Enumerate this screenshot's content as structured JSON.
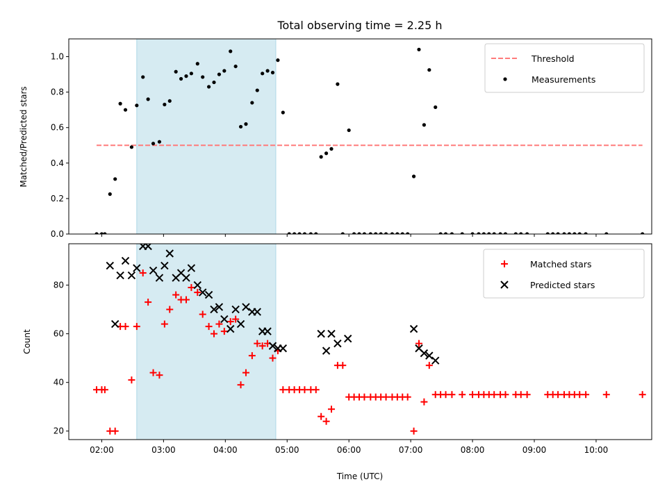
{
  "title": "Total observing time = 2.25 h",
  "colors": {
    "shade": "#add8e6",
    "threshold": "#ff7b7b",
    "measurements": "#000000",
    "matched": "#ff0000",
    "predicted": "#000000"
  },
  "chart_data": [
    {
      "type": "scatter",
      "ylabel": "Matched/Predicted stars",
      "xlim": [
        "01:28",
        "10:54"
      ],
      "ylim": [
        0,
        1.1
      ],
      "yticks": [
        0.0,
        0.2,
        0.4,
        0.6,
        0.8,
        1.0
      ],
      "ytick_labels": [
        "0.0",
        "0.2",
        "0.4",
        "0.6",
        "0.8",
        "1.0"
      ],
      "shaded_span": [
        "02:34",
        "04:49"
      ],
      "threshold": {
        "y": 0.5,
        "x_range": [
          "01:55",
          "10:45"
        ]
      },
      "legend": {
        "position": "upper right",
        "entries": [
          "Threshold",
          "Measurements"
        ]
      },
      "series": [
        {
          "name": "Threshold",
          "kind": "dashed-line"
        },
        {
          "name": "Measurements",
          "kind": "dot",
          "points": [
            [
              "01:55",
              0
            ],
            [
              "02:00",
              0
            ],
            [
              "02:03",
              0
            ],
            [
              "02:08",
              0.225
            ],
            [
              "02:13",
              0.31
            ],
            [
              "02:18",
              0.735
            ],
            [
              "02:23",
              0.7
            ],
            [
              "02:29",
              0.49
            ],
            [
              "02:34",
              0.725
            ],
            [
              "02:40",
              0.885
            ],
            [
              "02:45",
              0.76
            ],
            [
              "02:50",
              0.51
            ],
            [
              "02:56",
              0.52
            ],
            [
              "03:01",
              0.73
            ],
            [
              "03:06",
              0.75
            ],
            [
              "03:12",
              0.915
            ],
            [
              "03:17",
              0.875
            ],
            [
              "03:22",
              0.89
            ],
            [
              "03:27",
              0.905
            ],
            [
              "03:33",
              0.96
            ],
            [
              "03:38",
              0.885
            ],
            [
              "03:44",
              0.83
            ],
            [
              "03:49",
              0.855
            ],
            [
              "03:54",
              0.9
            ],
            [
              "03:59",
              0.92
            ],
            [
              "04:05",
              1.03
            ],
            [
              "04:10",
              0.945
            ],
            [
              "04:15",
              0.605
            ],
            [
              "04:20",
              0.62
            ],
            [
              "04:26",
              0.74
            ],
            [
              "04:31",
              0.81
            ],
            [
              "04:36",
              0.905
            ],
            [
              "04:41",
              0.92
            ],
            [
              "04:46",
              0.91
            ],
            [
              "04:51",
              0.98
            ],
            [
              "04:56",
              0.685
            ],
            [
              "05:02",
              0
            ],
            [
              "05:07",
              0
            ],
            [
              "05:12",
              0
            ],
            [
              "05:17",
              0
            ],
            [
              "05:23",
              0
            ],
            [
              "05:28",
              0
            ],
            [
              "05:33",
              0.435
            ],
            [
              "05:38",
              0.455
            ],
            [
              "05:43",
              0.48
            ],
            [
              "05:49",
              0.845
            ],
            [
              "05:54",
              0
            ],
            [
              "06:00",
              0.585
            ],
            [
              "06:05",
              0
            ],
            [
              "06:10",
              0
            ],
            [
              "06:15",
              0
            ],
            [
              "06:21",
              0
            ],
            [
              "06:26",
              0
            ],
            [
              "06:31",
              0
            ],
            [
              "06:36",
              0
            ],
            [
              "06:42",
              0
            ],
            [
              "06:47",
              0
            ],
            [
              "06:52",
              0
            ],
            [
              "06:57",
              0
            ],
            [
              "07:03",
              0.325
            ],
            [
              "07:08",
              1.04
            ],
            [
              "07:13",
              0.615
            ],
            [
              "07:18",
              0.925
            ],
            [
              "07:24",
              0.715
            ],
            [
              "07:29",
              0
            ],
            [
              "07:34",
              0
            ],
            [
              "07:40",
              0
            ],
            [
              "07:50",
              0
            ],
            [
              "08:00",
              0
            ],
            [
              "08:06",
              0
            ],
            [
              "08:11",
              0
            ],
            [
              "08:16",
              0
            ],
            [
              "08:21",
              0
            ],
            [
              "08:27",
              0
            ],
            [
              "08:32",
              0
            ],
            [
              "08:42",
              0
            ],
            [
              "08:47",
              0
            ],
            [
              "08:53",
              0
            ],
            [
              "09:13",
              0
            ],
            [
              "09:18",
              0
            ],
            [
              "09:23",
              0
            ],
            [
              "09:29",
              0
            ],
            [
              "09:34",
              0
            ],
            [
              "09:39",
              0
            ],
            [
              "09:44",
              0
            ],
            [
              "09:50",
              0
            ],
            [
              "10:10",
              0
            ],
            [
              "10:45",
              0
            ]
          ]
        }
      ]
    },
    {
      "type": "scatter",
      "ylabel": "Count",
      "xlabel": "Time (UTC)",
      "xlim": [
        "01:28",
        "10:54"
      ],
      "ylim": [
        16.5,
        97
      ],
      "yticks": [
        20,
        40,
        60,
        80
      ],
      "ytick_labels": [
        "20",
        "40",
        "60",
        "80"
      ],
      "xticks": [
        "02:00",
        "03:00",
        "04:00",
        "05:00",
        "06:00",
        "07:00",
        "08:00",
        "09:00",
        "10:00"
      ],
      "xtick_labels": [
        "02:00",
        "03:00",
        "04:00",
        "05:00",
        "06:00",
        "07:00",
        "08:00",
        "09:00",
        "10:00"
      ],
      "shaded_span": [
        "02:34",
        "04:49"
      ],
      "legend": {
        "position": "upper right",
        "entries": [
          "Matched stars",
          "Predicted stars"
        ]
      },
      "series": [
        {
          "name": "Matched stars",
          "kind": "plus",
          "points": [
            [
              "01:55",
              37
            ],
            [
              "02:00",
              37
            ],
            [
              "02:03",
              37
            ],
            [
              "02:08",
              20
            ],
            [
              "02:13",
              20
            ],
            [
              "02:18",
              63
            ],
            [
              "02:23",
              63
            ],
            [
              "02:29",
              41
            ],
            [
              "02:34",
              63
            ],
            [
              "02:40",
              85
            ],
            [
              "02:45",
              73
            ],
            [
              "02:50",
              44
            ],
            [
              "02:56",
              43
            ],
            [
              "03:01",
              64
            ],
            [
              "03:06",
              70
            ],
            [
              "03:12",
              76
            ],
            [
              "03:17",
              74
            ],
            [
              "03:22",
              74
            ],
            [
              "03:27",
              79
            ],
            [
              "03:33",
              77
            ],
            [
              "03:38",
              68
            ],
            [
              "03:44",
              63
            ],
            [
              "03:49",
              60
            ],
            [
              "03:54",
              64
            ],
            [
              "03:59",
              61
            ],
            [
              "04:05",
              65
            ],
            [
              "04:10",
              66
            ],
            [
              "04:15",
              39
            ],
            [
              "04:20",
              44
            ],
            [
              "04:26",
              51
            ],
            [
              "04:31",
              56
            ],
            [
              "04:36",
              55
            ],
            [
              "04:41",
              56
            ],
            [
              "04:46",
              50
            ],
            [
              "04:51",
              53
            ],
            [
              "04:56",
              37
            ],
            [
              "05:02",
              37
            ],
            [
              "05:07",
              37
            ],
            [
              "05:12",
              37
            ],
            [
              "05:17",
              37
            ],
            [
              "05:23",
              37
            ],
            [
              "05:28",
              37
            ],
            [
              "05:33",
              26
            ],
            [
              "05:38",
              24
            ],
            [
              "05:43",
              29
            ],
            [
              "05:49",
              47
            ],
            [
              "05:54",
              47
            ],
            [
              "06:00",
              34
            ],
            [
              "06:05",
              34
            ],
            [
              "06:10",
              34
            ],
            [
              "06:15",
              34
            ],
            [
              "06:21",
              34
            ],
            [
              "06:26",
              34
            ],
            [
              "06:31",
              34
            ],
            [
              "06:36",
              34
            ],
            [
              "06:42",
              34
            ],
            [
              "06:47",
              34
            ],
            [
              "06:52",
              34
            ],
            [
              "06:57",
              34
            ],
            [
              "07:03",
              20
            ],
            [
              "07:08",
              56
            ],
            [
              "07:13",
              32
            ],
            [
              "07:18",
              47
            ],
            [
              "07:24",
              35
            ],
            [
              "07:29",
              35
            ],
            [
              "07:34",
              35
            ],
            [
              "07:40",
              35
            ],
            [
              "07:50",
              35
            ],
            [
              "08:00",
              35
            ],
            [
              "08:06",
              35
            ],
            [
              "08:11",
              35
            ],
            [
              "08:16",
              35
            ],
            [
              "08:21",
              35
            ],
            [
              "08:27",
              35
            ],
            [
              "08:32",
              35
            ],
            [
              "08:42",
              35
            ],
            [
              "08:47",
              35
            ],
            [
              "08:53",
              35
            ],
            [
              "09:13",
              35
            ],
            [
              "09:18",
              35
            ],
            [
              "09:23",
              35
            ],
            [
              "09:29",
              35
            ],
            [
              "09:34",
              35
            ],
            [
              "09:39",
              35
            ],
            [
              "09:44",
              35
            ],
            [
              "09:50",
              35
            ],
            [
              "10:10",
              35
            ],
            [
              "10:45",
              35
            ]
          ]
        },
        {
          "name": "Predicted stars",
          "kind": "cross",
          "points": [
            [
              "02:08",
              88
            ],
            [
              "02:13",
              64
            ],
            [
              "02:18",
              84
            ],
            [
              "02:23",
              90
            ],
            [
              "02:29",
              84
            ],
            [
              "02:34",
              87
            ],
            [
              "02:40",
              96
            ],
            [
              "02:45",
              96
            ],
            [
              "02:50",
              86
            ],
            [
              "02:56",
              83
            ],
            [
              "03:01",
              88
            ],
            [
              "03:06",
              93
            ],
            [
              "03:12",
              83
            ],
            [
              "03:17",
              85
            ],
            [
              "03:22",
              83
            ],
            [
              "03:27",
              87
            ],
            [
              "03:33",
              80
            ],
            [
              "03:38",
              77
            ],
            [
              "03:44",
              76
            ],
            [
              "03:49",
              70
            ],
            [
              "03:54",
              71
            ],
            [
              "03:59",
              66
            ],
            [
              "04:05",
              62
            ],
            [
              "04:10",
              70
            ],
            [
              "04:15",
              64
            ],
            [
              "04:20",
              71
            ],
            [
              "04:26",
              69
            ],
            [
              "04:31",
              69
            ],
            [
              "04:36",
              61
            ],
            [
              "04:41",
              61
            ],
            [
              "04:46",
              55
            ],
            [
              "04:51",
              54
            ],
            [
              "04:56",
              54
            ],
            [
              "05:33",
              60
            ],
            [
              "05:38",
              53
            ],
            [
              "05:43",
              60
            ],
            [
              "05:49",
              56
            ],
            [
              "05:59",
              58
            ],
            [
              "07:03",
              62
            ],
            [
              "07:08",
              54
            ],
            [
              "07:13",
              52
            ],
            [
              "07:18",
              51
            ],
            [
              "07:24",
              49
            ]
          ]
        }
      ]
    }
  ]
}
